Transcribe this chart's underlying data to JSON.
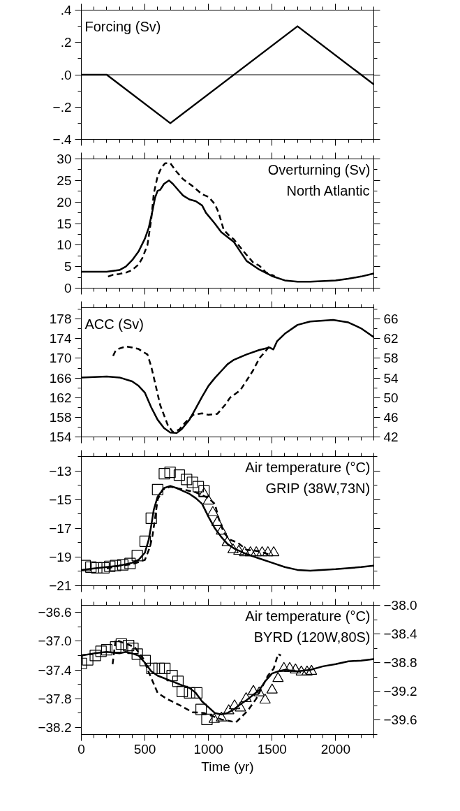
{
  "chart_data": [
    {
      "type": "line",
      "annotations": [
        "Forcing (Sv)"
      ],
      "xlim": [
        0,
        2300
      ],
      "xticks": [
        0,
        500,
        1000,
        1500,
        2000
      ],
      "ylim": [
        -0.4,
        0.4
      ],
      "yticks": [
        {
          "value": 0.4,
          "label": ".4"
        },
        {
          "value": 0.2,
          "label": ".2"
        },
        {
          "value": 0,
          "label": ".0"
        },
        {
          "value": -0.2,
          "label": "−.2"
        },
        {
          "value": -0.4,
          "label": "−.4"
        }
      ],
      "tick_labels": "y",
      "grid": false,
      "ref_lines": [
        {
          "axis": "y",
          "value": 0,
          "color": "#000000"
        }
      ],
      "series": [
        {
          "color": "#000000",
          "line_style": "solid",
          "x": [
            0,
            200,
            700,
            1700,
            2300
          ],
          "values": [
            0,
            0,
            -0.3,
            0.3,
            -0.06
          ]
        }
      ]
    },
    {
      "type": "line",
      "annotations": [
        "Overturning (Sv)",
        "North Atlantic"
      ],
      "xlim": [
        0,
        2300
      ],
      "xticks": [
        0,
        500,
        1000,
        1500,
        2000
      ],
      "ylim": [
        0,
        30
      ],
      "yticks": [
        0,
        5,
        10,
        15,
        20,
        25,
        30
      ],
      "tick_labels": "y",
      "grid": false,
      "series": [
        {
          "color": "#000000",
          "line_style": "solid",
          "x": [
            0,
            200,
            300,
            350,
            400,
            450,
            500,
            530,
            560,
            580,
            600,
            620,
            650,
            690,
            720,
            770,
            800,
            850,
            900,
            950,
            980,
            1050,
            1100,
            1200,
            1250,
            1300,
            1400,
            1500,
            1600,
            1700,
            1800,
            2000,
            2100,
            2200,
            2300
          ],
          "values": [
            3.8,
            3.8,
            4.2,
            5,
            6.5,
            8.5,
            11.5,
            14,
            18,
            21,
            22.6,
            22.8,
            24.2,
            25,
            24.2,
            22.5,
            21.5,
            20.6,
            20.2,
            19.2,
            17.5,
            15,
            13,
            10.7,
            8.5,
            6.3,
            4.3,
            2.8,
            1.8,
            1.5,
            1.5,
            1.8,
            2.2,
            2.7,
            3.4
          ]
        },
        {
          "color": "#000000",
          "line_style": "dashed",
          "x": [
            210,
            250,
            300,
            350,
            400,
            450,
            480,
            520,
            550,
            570,
            600,
            630,
            660,
            700,
            750,
            800,
            870,
            950,
            1000,
            1050,
            1080,
            1120,
            1170,
            1200,
            1280,
            1350,
            1400,
            1450,
            1520
          ],
          "values": [
            2.7,
            3.1,
            3.3,
            3.6,
            4.2,
            5.5,
            7,
            10,
            16,
            22,
            26,
            28,
            29,
            29,
            27,
            25.3,
            23.8,
            21.8,
            21.2,
            19.5,
            17.5,
            13.5,
            12,
            11.3,
            8.4,
            6,
            5.2,
            3.7,
            2.8
          ]
        }
      ]
    },
    {
      "type": "line",
      "annotations": [
        "ACC (Sv)"
      ],
      "xlim": [
        0,
        2300
      ],
      "xticks": [
        0,
        500,
        1000,
        1500,
        2000
      ],
      "ylim": [
        154,
        180.3
      ],
      "yticks": [
        154,
        158,
        162,
        166,
        170,
        174,
        178
      ],
      "y2lim": [
        42,
        68.3
      ],
      "y2ticks": [
        42,
        46,
        50,
        54,
        58,
        62,
        66
      ],
      "tick_labels": "y",
      "grid": false,
      "series": [
        {
          "color": "#000000",
          "line_style": "solid",
          "x": [
            0,
            200,
            300,
            400,
            450,
            500,
            550,
            600,
            650,
            700,
            750,
            790,
            850,
            900,
            950,
            1000,
            1050,
            1100,
            1150,
            1200,
            1300,
            1400,
            1480,
            1510,
            1540,
            1600,
            1700,
            1800,
            1980,
            2100,
            2200,
            2300
          ],
          "values": [
            166.1,
            166.3,
            166.1,
            165.3,
            164.4,
            163,
            160,
            157.5,
            155.8,
            154.9,
            154.8,
            155.6,
            157.5,
            159.8,
            162.2,
            164.4,
            166,
            167.4,
            168.8,
            169.7,
            170.8,
            171.7,
            172.2,
            171.8,
            173.5,
            175,
            176.8,
            177.5,
            177.8,
            177.3,
            176.1,
            174.3
          ]
        },
        {
          "color": "#000000",
          "line_style": "dashed",
          "axis": "y2",
          "x": [
            250,
            270,
            300,
            350,
            400,
            450,
            480,
            520,
            550,
            580,
            620,
            680,
            720,
            770,
            820,
            880,
            950,
            1000,
            1070,
            1130,
            1170,
            1250,
            1300,
            1350,
            1400,
            1450,
            1480
          ],
          "values": [
            58.5,
            59.6,
            60,
            60.4,
            60.2,
            59.9,
            59.4,
            58.8,
            56.3,
            53,
            48.5,
            44.4,
            43,
            43.5,
            45,
            46.5,
            46.8,
            46.5,
            46.7,
            48.5,
            50,
            51.5,
            53.5,
            55.5,
            58,
            59.5,
            60.5
          ]
        }
      ]
    },
    {
      "type": "line",
      "annotations": [
        "Air temperature (°C)",
        "GRIP (38W,73N)"
      ],
      "xlim": [
        0,
        2300
      ],
      "xticks": [
        0,
        500,
        1000,
        1500,
        2000
      ],
      "ylim": [
        -21,
        -12
      ],
      "yticks": [
        {
          "value": -21,
          "label": "−21"
        },
        {
          "value": -19,
          "label": "−19"
        },
        {
          "value": -17,
          "label": "−17"
        },
        {
          "value": -15,
          "label": "−15"
        },
        {
          "value": -13,
          "label": "−13"
        }
      ],
      "tick_labels": "y",
      "grid": false,
      "series": [
        {
          "color": "#000000",
          "line_style": "solid",
          "x": [
            0,
            100,
            200,
            300,
            400,
            450,
            500,
            530,
            550,
            570,
            600,
            650,
            700,
            750,
            800,
            850,
            900,
            950,
            1000,
            1050,
            1100,
            1150,
            1200,
            1300,
            1400,
            1500,
            1600,
            1700,
            1800,
            2000,
            2200,
            2300
          ],
          "values": [
            -19.9,
            -19.8,
            -19.7,
            -19.6,
            -19.4,
            -19.2,
            -18.7,
            -17.8,
            -16.8,
            -15.7,
            -14.8,
            -14.2,
            -14.05,
            -14.2,
            -14.4,
            -14.6,
            -14.9,
            -15.3,
            -16.2,
            -17,
            -17.6,
            -18.1,
            -18.4,
            -18.8,
            -19.1,
            -19.4,
            -19.7,
            -19.9,
            -19.95,
            -19.85,
            -19.7,
            -19.6
          ]
        },
        {
          "color": "#000000",
          "line_style": "dashed",
          "x": [
            200,
            300,
            400,
            500,
            540,
            560,
            580,
            600,
            640,
            700,
            800,
            900,
            1000,
            1050,
            1080,
            1120,
            1170,
            1230,
            1300,
            1400,
            1500
          ],
          "values": [
            -19.8,
            -19.6,
            -19.5,
            -19.2,
            -18.3,
            -17.5,
            -16.3,
            -15,
            -14.3,
            -14.1,
            -14.3,
            -14.5,
            -14.9,
            -15.3,
            -16.3,
            -17.3,
            -17.8,
            -18,
            -18.5,
            -18.6,
            -18.9
          ]
        },
        {
          "type": "scatter",
          "marker": "square",
          "color": "#000000",
          "x": [
            30,
            75,
            121,
            178,
            224,
            269,
            326,
            383,
            440,
            502,
            550,
            600,
            653,
            698,
            771,
            828,
            874,
            920,
            965
          ],
          "values": [
            -19.6,
            -19.7,
            -19.75,
            -19.75,
            -19.65,
            -19.6,
            -19.55,
            -19.45,
            -18.9,
            -17.9,
            -16.3,
            -14.3,
            -13.2,
            -13.1,
            -13.3,
            -13.6,
            -13.8,
            -14.1,
            -14.4
          ]
        },
        {
          "type": "scatter",
          "marker": "triangle",
          "color": "#000000",
          "x": [
            965,
            1000,
            1034,
            1068,
            1102,
            1148,
            1193,
            1239,
            1285,
            1330,
            1376,
            1422,
            1467,
            1513
          ],
          "values": [
            -14.6,
            -15.1,
            -15.9,
            -16.6,
            -17.2,
            -18,
            -18.5,
            -18.6,
            -18.7,
            -18.7,
            -18.7,
            -18.7,
            -18.7,
            -18.7
          ]
        }
      ]
    },
    {
      "type": "line",
      "annotations": [
        "Air temperature (°C)",
        "BYRD (120W,80S)"
      ],
      "xlabel": "Time (yr)",
      "xlim": [
        0,
        2300
      ],
      "xticks": [
        0,
        500,
        1000,
        1500,
        2000
      ],
      "ylim": [
        -38.3,
        -36.5
      ],
      "yticks": [
        {
          "value": -38.2,
          "label": "−38.2"
        },
        {
          "value": -37.8,
          "label": "−37.8"
        },
        {
          "value": -37.4,
          "label": "−37.4"
        },
        {
          "value": -37.0,
          "label": "−37.0"
        },
        {
          "value": -36.6,
          "label": "−36.6"
        }
      ],
      "y2lim": [
        -39.8,
        -38.0
      ],
      "y2ticks": [
        {
          "value": -39.6,
          "label": "−39.6"
        },
        {
          "value": -39.2,
          "label": "−39.2"
        },
        {
          "value": -38.8,
          "label": "−38.8"
        },
        {
          "value": -38.4,
          "label": "−38.4"
        },
        {
          "value": -38.0,
          "label": "−38.0"
        }
      ],
      "grid": false,
      "series": [
        {
          "color": "#000000",
          "line_style": "solid",
          "x": [
            0,
            100,
            200,
            300,
            350,
            400,
            450,
            500,
            550,
            600,
            700,
            800,
            850,
            900,
            950,
            1000,
            1050,
            1100,
            1150,
            1200,
            1250,
            1300,
            1350,
            1400,
            1450,
            1500,
            1550,
            1600,
            1700,
            1800,
            1900,
            2000,
            2100,
            2200,
            2300
          ],
          "values": [
            -37.2,
            -37.17,
            -37.15,
            -37.17,
            -37.15,
            -37.17,
            -37.2,
            -37.3,
            -37.42,
            -37.48,
            -37.55,
            -37.62,
            -37.65,
            -37.72,
            -37.84,
            -37.92,
            -38.0,
            -38.02,
            -38.0,
            -37.95,
            -37.88,
            -37.82,
            -37.75,
            -37.68,
            -37.55,
            -37.45,
            -37.42,
            -37.4,
            -37.42,
            -37.4,
            -37.35,
            -37.32,
            -37.28,
            -37.27,
            -37.25
          ]
        },
        {
          "color": "#000000",
          "line_style": "dashed",
          "axis": "y2",
          "x": [
            246,
            270,
            326,
            418,
            486,
            532,
            600,
            669,
            783,
            874,
            965,
            1102,
            1216,
            1308,
            1376,
            1467,
            1513,
            1547,
            1570
          ],
          "values": [
            -38.82,
            -38.48,
            -38.52,
            -38.58,
            -38.74,
            -38.94,
            -39.22,
            -39.3,
            -39.4,
            -39.49,
            -39.5,
            -39.59,
            -39.63,
            -39.47,
            -39.3,
            -38.98,
            -38.88,
            -38.68,
            -38.7
          ]
        },
        {
          "type": "scatter",
          "marker": "square",
          "color": "#000000",
          "x": [
            0,
            50,
            110,
            155,
            200,
            270,
            315,
            372,
            406,
            440,
            502,
            555,
            612,
            657,
            714,
            760,
            794,
            851,
            908,
            942,
            988
          ],
          "values": [
            -37.31,
            -37.26,
            -37.2,
            -37.14,
            -37.12,
            -37.08,
            -37.04,
            -37.06,
            -37.1,
            -37.18,
            -37.27,
            -37.38,
            -37.38,
            -37.38,
            -37.48,
            -37.56,
            -37.7,
            -37.72,
            -37.72,
            -37.95,
            -38.09
          ]
        },
        {
          "type": "scatter",
          "marker": "triangle",
          "color": "#000000",
          "x": [
            1045,
            1102,
            1159,
            1205,
            1251,
            1296,
            1353,
            1399,
            1445,
            1500,
            1547,
            1593,
            1639,
            1684,
            1730,
            1775,
            1810
          ],
          "values": [
            -38.09,
            -38.07,
            -37.97,
            -37.9,
            -37.93,
            -37.8,
            -37.7,
            -37.72,
            -37.82,
            -37.68,
            -37.52,
            -37.38,
            -37.38,
            -37.4,
            -37.43,
            -37.43,
            -37.42
          ]
        }
      ]
    }
  ]
}
